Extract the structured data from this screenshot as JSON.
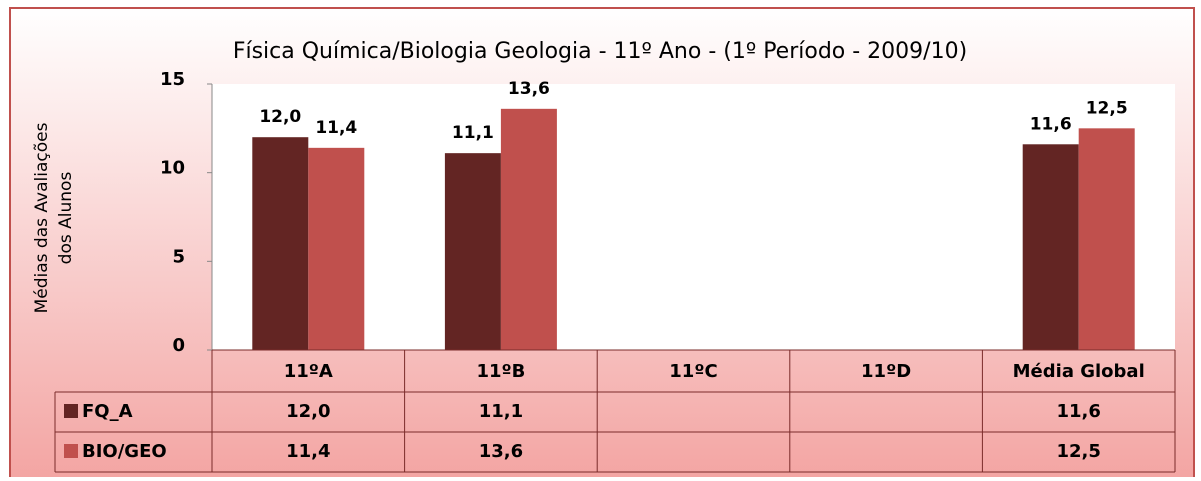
{
  "chart_data": {
    "type": "bar",
    "title": "Física Química/Biologia Geologia  - 11º Ano - (1º Período - 2009/10)",
    "ylabel": [
      "Médias das Avaliações",
      "dos Alunos"
    ],
    "categories": [
      "11ºA",
      "11ºB",
      "11ºC",
      "11ºD",
      "Média Global"
    ],
    "series": [
      {
        "name": "FQ_A",
        "color": "#632523",
        "values": [
          12.0,
          11.1,
          null,
          null,
          11.6
        ],
        "value_labels": [
          "12,0",
          "11,1",
          null,
          null,
          "11,6"
        ]
      },
      {
        "name": "BIO/GEO",
        "color": "#c0504d",
        "values": [
          11.4,
          13.6,
          null,
          null,
          12.5
        ],
        "value_labels": [
          "11,4",
          "13,6",
          null,
          null,
          "12,5"
        ]
      }
    ],
    "ylim": [
      0,
      15
    ],
    "yticks": [
      0,
      5,
      10,
      15
    ],
    "grid": false,
    "data_table": true
  }
}
